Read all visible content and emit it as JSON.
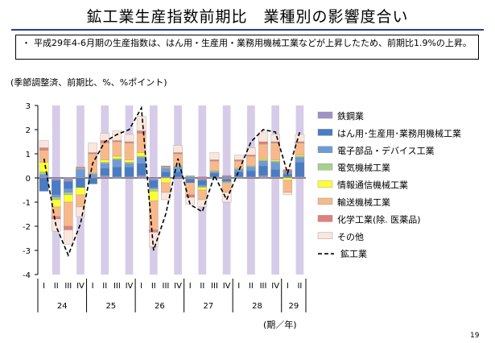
{
  "page": {
    "title": "鉱工業生産指数前期比　業種別の影響度合い",
    "bullet": "・",
    "note": "平成29年4-6月期の生産指数は、はん用・生産用・業務用機械工業などが上昇したため、前期比1.9%の上昇。",
    "unit_label": "(季節調整済、前期比、%、%ポイント)",
    "axis_unit": "(期／年)",
    "page_number": "19"
  },
  "colors": {
    "shade": "#d6cce8",
    "title_rule": "#2a3e8c"
  },
  "chart_data": {
    "type": "bar",
    "stacked": true,
    "ylim": [
      -4,
      3
    ],
    "yticks": [
      -4,
      -3,
      -2,
      -1,
      0,
      1,
      2,
      3
    ],
    "categories": [
      "I",
      "II",
      "III",
      "IV",
      "I",
      "II",
      "III",
      "IV",
      "I",
      "II",
      "III",
      "IV",
      "I",
      "II",
      "III",
      "IV",
      "I",
      "II",
      "III",
      "IV",
      "I",
      "II"
    ],
    "year_groups": [
      {
        "label": "24",
        "start": 0,
        "count": 4
      },
      {
        "label": "25",
        "start": 4,
        "count": 4
      },
      {
        "label": "26",
        "start": 8,
        "count": 4
      },
      {
        "label": "27",
        "start": 12,
        "count": 4
      },
      {
        "label": "28",
        "start": 16,
        "count": 4
      },
      {
        "label": "29",
        "start": 20,
        "count": 2
      }
    ],
    "shaded_quarters": [
      "II",
      "IV"
    ],
    "series": [
      {
        "name": "鉄鋼業",
        "color": "#9f93c6",
        "values": [
          0.05,
          -0.1,
          -0.15,
          0.05,
          0.05,
          0.1,
          0.05,
          0.05,
          0.1,
          -0.1,
          0.05,
          0.05,
          -0.05,
          -0.1,
          0.05,
          -0.05,
          0.05,
          0.05,
          0.1,
          0.05,
          0.05,
          0.05
        ]
      },
      {
        "name": "はん用･生産用･業務用機械工業",
        "color": "#4a7cc4",
        "values": [
          -0.55,
          -0.6,
          -0.3,
          -0.4,
          -0.25,
          0.3,
          0.4,
          0.4,
          0.5,
          -0.3,
          0.2,
          0.2,
          -0.15,
          -0.2,
          0.15,
          -0.1,
          0.2,
          0.25,
          0.4,
          0.3,
          0.1,
          0.6
        ]
      },
      {
        "name": "電子部品・デバイス工業",
        "color": "#6e9bd6",
        "values": [
          0.1,
          -0.1,
          -0.15,
          0.3,
          0.1,
          0.2,
          0.3,
          0.15,
          0.25,
          -0.05,
          0.15,
          0.2,
          0.05,
          -0.05,
          0.05,
          0.05,
          0.1,
          0.15,
          0.2,
          0.3,
          0.1,
          0.2
        ]
      },
      {
        "name": "電気機械工業",
        "color": "#a8d08d",
        "values": [
          0.1,
          -0.1,
          -0.1,
          0.05,
          0.05,
          0.05,
          0.05,
          0.05,
          0.05,
          -0.1,
          0.05,
          0.05,
          0.05,
          -0.05,
          0.05,
          -0.05,
          0.05,
          0.05,
          0.05,
          0.05,
          0.0,
          0.05
        ]
      },
      {
        "name": "情報通信機械工業",
        "color": "#ffff33",
        "values": [
          0.4,
          -0.3,
          -0.3,
          -0.3,
          0.0,
          0.1,
          0.1,
          0.1,
          0.15,
          -0.4,
          -0.2,
          0.0,
          0.0,
          -0.1,
          0.0,
          0.0,
          0.0,
          0.0,
          0.05,
          0.05,
          -0.1,
          0.05
        ]
      },
      {
        "name": "輸送機械工業",
        "color": "#f7b98b",
        "values": [
          0.5,
          -0.4,
          -1.0,
          -0.5,
          0.8,
          0.7,
          0.6,
          0.7,
          0.8,
          -1.2,
          -0.4,
          0.5,
          -0.5,
          -0.4,
          0.4,
          -0.4,
          0.3,
          0.4,
          0.6,
          0.7,
          -0.5,
          0.5
        ]
      },
      {
        "name": "化学工業(除. 医薬品)",
        "color": "#e08080",
        "values": [
          0.1,
          -0.1,
          -0.15,
          0.05,
          0.05,
          0.1,
          0.05,
          0.05,
          0.1,
          -0.1,
          0.05,
          0.05,
          -0.1,
          0.05,
          0.05,
          0.05,
          0.05,
          0.05,
          0.1,
          0.05,
          0.1,
          0.05
        ]
      },
      {
        "name": "その他",
        "color": "#fbe6dc",
        "values": [
          0.3,
          -0.5,
          -0.6,
          -0.4,
          0.4,
          0.3,
          0.4,
          0.3,
          0.6,
          -0.6,
          -0.3,
          0.3,
          -0.3,
          -0.3,
          0.3,
          -0.4,
          0.2,
          0.3,
          0.4,
          0.3,
          -0.1,
          0.3
        ]
      },
      {
        "name": "鉱工業",
        "type": "line",
        "color": "#000000",
        "values": [
          0.8,
          -2.0,
          -3.2,
          -1.9,
          0.6,
          1.5,
          1.8,
          2.0,
          2.9,
          -3.0,
          -1.5,
          0.8,
          -1.1,
          -1.4,
          0.1,
          -0.9,
          0.3,
          1.5,
          2.0,
          1.9,
          0.2,
          1.9
        ]
      }
    ]
  }
}
